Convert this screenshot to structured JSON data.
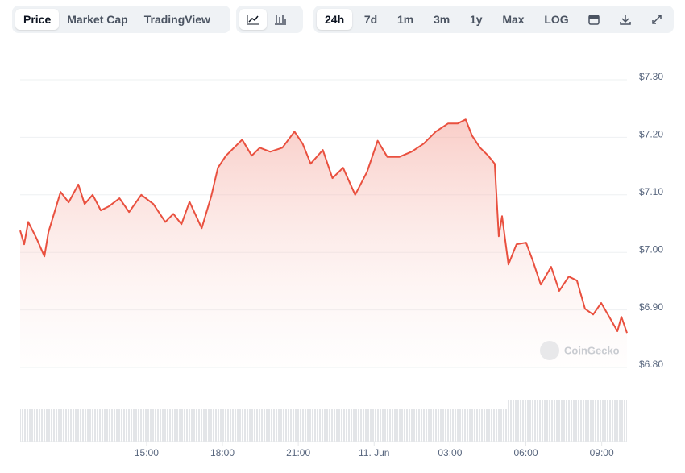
{
  "toolbar": {
    "views": [
      "Price",
      "Market Cap",
      "TradingView"
    ],
    "ranges": [
      "24h",
      "7d",
      "1m",
      "3m",
      "1y",
      "Max",
      "LOG"
    ]
  },
  "chart_data": {
    "type": "line",
    "watermark": "CoinGecko",
    "color": "#e9503f",
    "x": [
      -14,
      -13.84,
      -13.68,
      -13.36,
      -13.04,
      -12.88,
      -12.4,
      -12.08,
      -11.7,
      -11.45,
      -11.13,
      -10.81,
      -10.49,
      -10.07,
      -9.69,
      -9.21,
      -8.73,
      -8.26,
      -7.94,
      -7.62,
      -7.3,
      -6.82,
      -6.44,
      -6.18,
      -5.86,
      -5.54,
      -5.22,
      -4.84,
      -4.52,
      -4.11,
      -3.63,
      -3.15,
      -2.83,
      -2.51,
      -2.03,
      -1.65,
      -1.23,
      -0.75,
      -0.28,
      0.14,
      0.52,
      1.0,
      1.48,
      1.96,
      2.44,
      2.92,
      3.3,
      3.62,
      3.87,
      4.19,
      4.51,
      4.77,
      4.93,
      5.06,
      5.31,
      5.63,
      6.01,
      6.27,
      6.59,
      7.0,
      7.32,
      7.7,
      8.02,
      8.34,
      8.66,
      8.98,
      9.3,
      9.62,
      9.78,
      10.0
    ],
    "values": [
      7.038,
      7.014,
      7.053,
      7.025,
      6.993,
      7.035,
      7.105,
      7.087,
      7.118,
      7.084,
      7.1,
      7.073,
      7.08,
      7.094,
      7.07,
      7.1,
      7.084,
      7.053,
      7.067,
      7.049,
      7.088,
      7.042,
      7.098,
      7.147,
      7.168,
      7.182,
      7.196,
      7.168,
      7.182,
      7.175,
      7.182,
      7.21,
      7.189,
      7.154,
      7.178,
      7.129,
      7.147,
      7.1,
      7.14,
      7.194,
      7.166,
      7.166,
      7.175,
      7.189,
      7.21,
      7.224,
      7.224,
      7.231,
      7.203,
      7.182,
      7.168,
      7.154,
      7.028,
      7.063,
      6.979,
      7.014,
      7.017,
      6.986,
      6.944,
      6.975,
      6.933,
      6.958,
      6.951,
      6.902,
      6.892,
      6.912,
      6.888,
      6.863,
      6.888,
      6.86
    ],
    "xlim": [
      -14,
      10
    ],
    "xticks": [
      {
        "value": -9,
        "label": "15:00"
      },
      {
        "value": -6,
        "label": "18:00"
      },
      {
        "value": -3,
        "label": "21:00"
      },
      {
        "value": 0,
        "label": "11. Jun"
      },
      {
        "value": 3,
        "label": "03:00"
      },
      {
        "value": 6,
        "label": "06:00"
      },
      {
        "value": 9,
        "label": "09:00"
      }
    ],
    "ylim": [
      6.8,
      7.3
    ],
    "yticks": [
      {
        "value": 6.8,
        "label": "$6.80"
      },
      {
        "value": 6.9,
        "label": "$6.90"
      },
      {
        "value": 7.0,
        "label": "$7.00"
      },
      {
        "value": 7.1,
        "label": "$7.10"
      },
      {
        "value": 7.2,
        "label": "$7.20"
      },
      {
        "value": 7.3,
        "label": "$7.30"
      }
    ],
    "grid": true
  }
}
